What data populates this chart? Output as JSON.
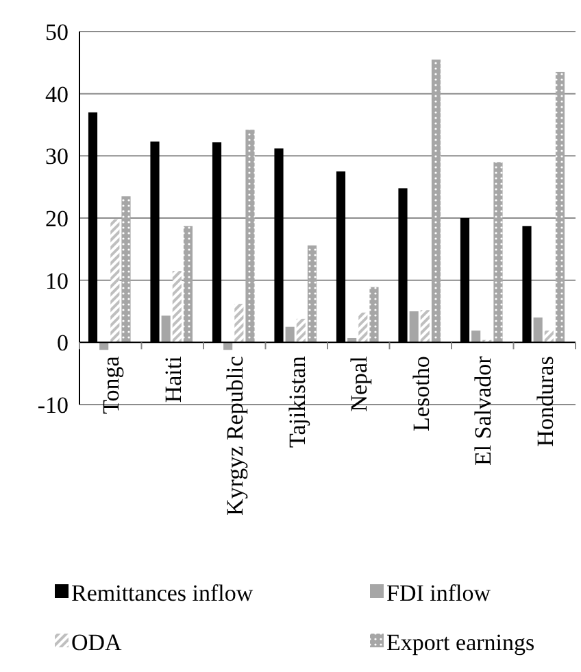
{
  "chart_data": {
    "type": "bar",
    "categories": [
      "Tonga",
      "Haiti",
      "Kyrgyz Republic",
      "Tajikistan",
      "Nepal",
      "Lesotho",
      "El Salvador",
      "Honduras"
    ],
    "series": [
      {
        "name": "Remittances inflow",
        "color": "#000000",
        "values": [
          37,
          32.3,
          32.2,
          31.2,
          27.5,
          24.8,
          20,
          18.7
        ]
      },
      {
        "name": "FDI inflow",
        "color": "#a6a6a6",
        "values": [
          -1.2,
          4.3,
          -1.2,
          2.5,
          0.7,
          5,
          1.9,
          4
        ]
      },
      {
        "name": "ODA",
        "color": "#bfbfbf",
        "values": [
          19.8,
          11.5,
          6.2,
          3.8,
          4.8,
          5.2,
          0.4,
          1.9
        ]
      },
      {
        "name": "Export earnings",
        "color": "#a6a6a6",
        "values": [
          23.5,
          18.7,
          34.2,
          15.6,
          8.9,
          45.5,
          29,
          43.5
        ]
      }
    ],
    "ylim": [
      -10,
      50
    ],
    "yticks": [
      -10,
      0,
      10,
      20,
      30,
      40,
      50
    ],
    "grid": "y",
    "legend": "bottom"
  }
}
